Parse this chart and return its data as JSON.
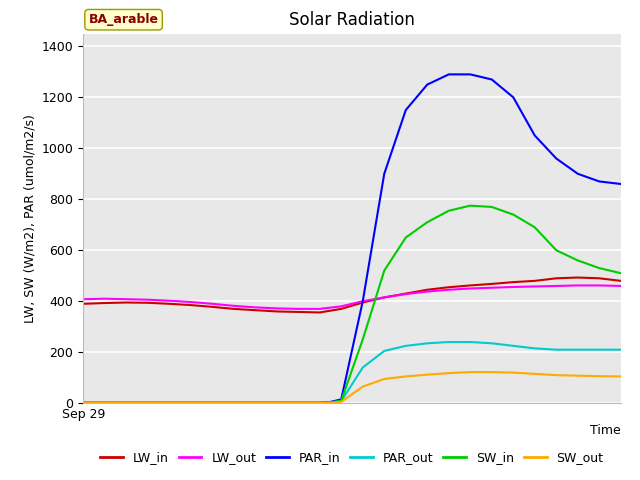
{
  "title": "Solar Radiation",
  "ylabel": "LW, SW (W/m2), PAR (umol/m2/s)",
  "xlabel": "Time",
  "xlabel_tick": "Sep 29",
  "annotation": "BA_arable",
  "ylim": [
    0,
    1450
  ],
  "xlim": [
    0,
    100
  ],
  "yticks": [
    0,
    200,
    400,
    600,
    800,
    1000,
    1200,
    1400
  ],
  "bg_color": "#e8e8e8",
  "series": {
    "LW_in": {
      "color": "#cc0000",
      "x": [
        0,
        4,
        8,
        12,
        16,
        20,
        24,
        28,
        32,
        36,
        40,
        44,
        48,
        52,
        56,
        60,
        64,
        68,
        72,
        76,
        80,
        84,
        88,
        92,
        96,
        100
      ],
      "y": [
        390,
        393,
        395,
        394,
        390,
        385,
        378,
        370,
        365,
        360,
        358,
        356,
        370,
        395,
        415,
        430,
        445,
        455,
        462,
        468,
        475,
        480,
        490,
        493,
        490,
        480
      ]
    },
    "LW_out": {
      "color": "#ff00ff",
      "x": [
        0,
        4,
        8,
        12,
        16,
        20,
        24,
        28,
        32,
        36,
        40,
        44,
        48,
        52,
        56,
        60,
        64,
        68,
        72,
        76,
        80,
        84,
        88,
        92,
        96,
        100
      ],
      "y": [
        408,
        410,
        408,
        406,
        402,
        397,
        390,
        382,
        376,
        372,
        370,
        370,
        380,
        400,
        415,
        428,
        438,
        445,
        450,
        453,
        456,
        458,
        460,
        462,
        462,
        460
      ]
    },
    "PAR_in": {
      "color": "#0000ff",
      "x": [
        0,
        4,
        8,
        12,
        16,
        20,
        24,
        28,
        32,
        36,
        40,
        44,
        46,
        48,
        52,
        56,
        60,
        64,
        68,
        72,
        76,
        80,
        84,
        88,
        92,
        96,
        100
      ],
      "y": [
        2,
        2,
        2,
        2,
        2,
        2,
        2,
        2,
        2,
        2,
        2,
        2,
        5,
        15,
        400,
        900,
        1150,
        1250,
        1290,
        1290,
        1270,
        1200,
        1050,
        960,
        900,
        870,
        860
      ]
    },
    "PAR_out": {
      "color": "#00cccc",
      "x": [
        0,
        4,
        8,
        12,
        16,
        20,
        24,
        28,
        32,
        36,
        40,
        44,
        46,
        48,
        52,
        56,
        60,
        64,
        68,
        72,
        76,
        80,
        84,
        88,
        92,
        96,
        100
      ],
      "y": [
        2,
        2,
        2,
        2,
        2,
        2,
        2,
        2,
        2,
        2,
        2,
        2,
        3,
        8,
        140,
        205,
        225,
        235,
        240,
        240,
        235,
        225,
        215,
        210,
        210,
        210,
        210
      ]
    },
    "SW_in": {
      "color": "#00cc00",
      "x": [
        0,
        4,
        8,
        12,
        16,
        20,
        24,
        28,
        32,
        36,
        40,
        44,
        46,
        48,
        52,
        56,
        60,
        64,
        68,
        72,
        76,
        80,
        84,
        88,
        92,
        96,
        100
      ],
      "y": [
        2,
        2,
        2,
        2,
        2,
        2,
        2,
        2,
        2,
        2,
        2,
        2,
        3,
        10,
        250,
        520,
        650,
        710,
        755,
        775,
        770,
        740,
        690,
        600,
        560,
        530,
        510
      ]
    },
    "SW_out": {
      "color": "#ffaa00",
      "x": [
        0,
        4,
        8,
        12,
        16,
        20,
        24,
        28,
        32,
        36,
        40,
        44,
        46,
        48,
        52,
        56,
        60,
        64,
        68,
        72,
        76,
        80,
        84,
        88,
        92,
        96,
        100
      ],
      "y": [
        2,
        2,
        2,
        2,
        2,
        2,
        2,
        2,
        2,
        2,
        2,
        2,
        2,
        5,
        65,
        95,
        105,
        112,
        118,
        122,
        122,
        120,
        115,
        110,
        108,
        106,
        105
      ]
    }
  },
  "legend_order": [
    "LW_in",
    "LW_out",
    "PAR_in",
    "PAR_out",
    "SW_in",
    "SW_out"
  ]
}
